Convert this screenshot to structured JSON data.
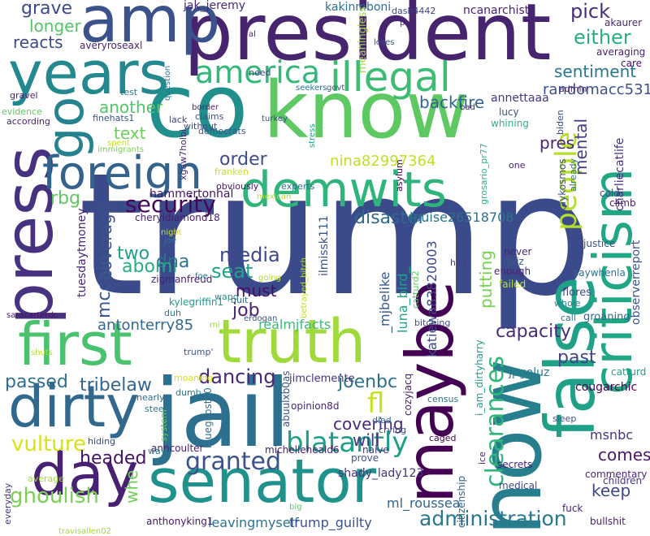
{
  "colors": {
    "background": "#ffffff",
    "palette": [
      "#440154",
      "#46327e",
      "#365c8d",
      "#277f8e",
      "#1fa187",
      "#4ac16d",
      "#a0da39",
      "#fde725"
    ]
  },
  "words": [
    {
      "text": "trump",
      "color": "#3b4a8a"
    },
    {
      "text": "president",
      "color": "#46256e"
    },
    {
      "text": "co",
      "color": "#21908d"
    },
    {
      "text": "know",
      "color": "#5ec962"
    },
    {
      "text": "press",
      "color": "#46327e"
    },
    {
      "text": "jail",
      "color": "#2c6f8e"
    },
    {
      "text": "now",
      "color": "#277f8e"
    },
    {
      "text": "first",
      "color": "#4ac16d"
    },
    {
      "text": "truth",
      "color": "#9fda3a"
    },
    {
      "text": "maybe",
      "color": "#440154"
    },
    {
      "text": "false",
      "color": "#1fa187"
    },
    {
      "text": "criticism",
      "color": "#22a785"
    },
    {
      "text": "senator",
      "color": "#20928c"
    },
    {
      "text": "demwits",
      "color": "#2fb47c"
    },
    {
      "text": "amp",
      "color": "#3b528b"
    },
    {
      "text": "years",
      "color": "#23898e"
    },
    {
      "text": "day",
      "color": "#482173"
    },
    {
      "text": "dirty",
      "color": "#31688e"
    },
    {
      "text": "foreign",
      "color": "#33628d"
    },
    {
      "text": "go",
      "color": "#26828e"
    },
    {
      "text": "illegal",
      "color": "#3fbc73"
    },
    {
      "text": "america",
      "color": "#35b779"
    },
    {
      "text": "people",
      "color": "#b5de2b"
    },
    {
      "text": "clearances",
      "color": "#31b57b"
    },
    {
      "text": "administration",
      "color": "#2a788e"
    },
    {
      "text": "security",
      "color": "#46075a"
    },
    {
      "text": "mental",
      "color": "#433e85"
    },
    {
      "text": "nina82997364",
      "color": "#bddf26"
    },
    {
      "text": "media",
      "color": "#3e4989"
    },
    {
      "text": "granted",
      "color": "#3b528b"
    },
    {
      "text": "blatantly",
      "color": "#1f9e89"
    },
    {
      "text": "dancing",
      "color": "#482878"
    },
    {
      "text": "fl",
      "color": "#c8e020"
    },
    {
      "text": "vulture",
      "color": "#d8e219"
    },
    {
      "text": "ghoulish",
      "color": "#7ad151"
    },
    {
      "text": "pick",
      "color": "#472d7b"
    },
    {
      "text": "either",
      "color": "#29af7f"
    },
    {
      "text": "sentiment",
      "color": "#2a768e"
    },
    {
      "text": "randomacc531",
      "color": "#3b528b"
    },
    {
      "text": "backfire",
      "color": "#33638d"
    },
    {
      "text": "pres",
      "color": "#482475"
    },
    {
      "text": "another",
      "color": "#52c569"
    },
    {
      "text": "text",
      "color": "#6ccd5a"
    },
    {
      "text": "order",
      "color": "#3e4c8a"
    },
    {
      "text": "rbg",
      "color": "#5ec962"
    },
    {
      "text": "disaster",
      "color": "#31688e"
    },
    {
      "text": "louise26518708",
      "color": "#2c728e"
    },
    {
      "text": "coverage",
      "color": "#3b528b"
    },
    {
      "text": "two",
      "color": "#1f9e89"
    },
    {
      "text": "dna",
      "color": "#2c728e"
    },
    {
      "text": "seat",
      "color": "#20a486"
    },
    {
      "text": "must",
      "color": "#471063"
    },
    {
      "text": "abomi",
      "color": "#27ad81"
    },
    {
      "text": "mccain",
      "color": "#38588c"
    },
    {
      "text": "job",
      "color": "#482071"
    },
    {
      "text": "capacity",
      "color": "#472c7a"
    },
    {
      "text": "past",
      "color": "#414487"
    },
    {
      "text": "joenbc",
      "color": "#2d708e"
    },
    {
      "text": "covering",
      "color": "#472a7a"
    },
    {
      "text": "will",
      "color": "#46327e"
    },
    {
      "text": "comes",
      "color": "#481769"
    },
    {
      "text": "keep",
      "color": "#3e4989"
    },
    {
      "text": "msnbc",
      "color": "#46327e"
    },
    {
      "text": "headed",
      "color": "#471365"
    },
    {
      "text": "passed",
      "color": "#2e6f8e"
    },
    {
      "text": "tribelaw",
      "color": "#32658e"
    },
    {
      "text": "antonterry85",
      "color": "#31688e"
    },
    {
      "text": "realmjfacts",
      "color": "#3aba76"
    },
    {
      "text": "katiewa83820003",
      "color": "#3e4a89"
    },
    {
      "text": "_mjbelike",
      "color": "#37598c"
    },
    {
      "text": "luna_bird_",
      "color": "#1fa287"
    },
    {
      "text": "putting",
      "color": "#75d054"
    },
    {
      "text": "leavingmyself",
      "color": "#2c738e"
    },
    {
      "text": "trump_guilty",
      "color": "#3b528b"
    },
    {
      "text": "ml_roussea",
      "color": "#32648e"
    },
    {
      "text": "shady_lady123",
      "color": "#46337f"
    },
    {
      "text": "charliecatlife",
      "color": "#46307e"
    },
    {
      "text": "observerreport",
      "color": "#3b528b"
    },
    {
      "text": "grave",
      "color": "#3e4989"
    },
    {
      "text": "longer",
      "color": "#52c569"
    },
    {
      "text": "reacts",
      "color": "#3e4989"
    },
    {
      "text": "jak_jeremy",
      "color": "#482878"
    },
    {
      "text": "kakinmboni",
      "color": "#2e6e8e"
    },
    {
      "text": "ncanarchist",
      "color": "#481f70"
    },
    {
      "text": "meaningless",
      "color": "#a2da37"
    },
    {
      "text": "averyroseaxl",
      "color": "#482475"
    },
    {
      "text": "dash4442",
      "color": "#414487"
    },
    {
      "text": "annettaaa",
      "color": "#453882"
    },
    {
      "text": "hammertonhal",
      "color": "#471365"
    },
    {
      "text": "cheryldiamond18",
      "color": "#481c6e"
    },
    {
      "text": "tuesdaytmoney",
      "color": "#482677"
    },
    {
      "text": "ilmissk111",
      "color": "#3b528b"
    },
    {
      "text": "zigmanfreud",
      "color": "#482071"
    },
    {
      "text": "kylegriffin1",
      "color": "#1f9a8a"
    },
    {
      "text": "opinion8d",
      "color": "#482878"
    },
    {
      "text": "jimclemente",
      "color": "#46327e"
    },
    {
      "text": "cozyjacq",
      "color": "#482071"
    },
    {
      "text": "jpgoluz",
      "color": "#2a788e"
    },
    {
      "text": "cougarchic",
      "color": "#440154"
    },
    {
      "text": "blueghost40",
      "color": "#2d708e"
    },
    {
      "text": "abuulxb0as",
      "color": "#3b528b"
    },
    {
      "text": "michelleheald6",
      "color": "#482071"
    },
    {
      "text": "anncoulter",
      "color": "#482071"
    },
    {
      "text": "anthonyking1",
      "color": "#471365"
    },
    {
      "text": "i_am_dirtyharry",
      "color": "#1f9e89"
    },
    {
      "text": "citizenship",
      "color": "#32648e"
    },
    {
      "text": "commentary",
      "color": "#482878"
    },
    {
      "text": "children",
      "color": "#463480"
    },
    {
      "text": "bullshit",
      "color": "#481a6c"
    },
    {
      "text": "secrets",
      "color": "#482475"
    },
    {
      "text": "medical",
      "color": "#3e4989"
    },
    {
      "text": "fuck",
      "color": "#482071"
    },
    {
      "text": "travisallen02",
      "color": "#a0da39"
    },
    {
      "text": "everyday",
      "color": "#46327e"
    },
    {
      "text": "whe",
      "color": "#6ece58"
    },
    {
      "text": "saracarterdc",
      "color": "#471365"
    },
    {
      "text": "flores",
      "color": "#3e4989"
    },
    {
      "text": "groaning",
      "color": "#31688e"
    },
    {
      "text": "saywhenla",
      "color": "#2c728e"
    },
    {
      "text": "kaykosmos",
      "color": "#3b528b"
    },
    {
      "text": "justice",
      "color": "#3b528b"
    },
    {
      "text": "climb",
      "color": "#481769"
    },
    {
      "text": "cold",
      "color": "#3f4788"
    },
    {
      "text": "whole",
      "color": "#26828e"
    },
    {
      "text": "call",
      "color": "#2a788e"
    },
    {
      "text": "catturd",
      "color": "#1f9e89"
    },
    {
      "text": "akaurer",
      "color": "#482878"
    },
    {
      "text": "averaging",
      "color": "#481f70"
    },
    {
      "text": "care",
      "color": "#471063"
    },
    {
      "text": "admin",
      "color": "#481a6c"
    },
    {
      "text": "lucy",
      "color": "#3b528b"
    },
    {
      "text": "whining",
      "color": "#2fb47c"
    },
    {
      "text": "biden",
      "color": "#3e4989"
    },
    {
      "text": "already",
      "color": "#2c728e"
    },
    {
      "text": "grosario_pr77",
      "color": "#2fb47c"
    },
    {
      "text": "one",
      "color": "#482071"
    },
    {
      "text": "asylum",
      "color": "#440154"
    },
    {
      "text": "never",
      "color": "#482878"
    },
    {
      "text": "quiz",
      "color": "#38588c"
    },
    {
      "text": "enough",
      "color": "#482677"
    },
    {
      "text": "failed",
      "color": "#b5de2b"
    },
    {
      "text": "hire",
      "color": "#433e85"
    },
    {
      "text": "catturd2",
      "color": "#5ec962"
    },
    {
      "text": "bitching",
      "color": "#3e4c8a"
    },
    {
      "text": "betrayed_bitch",
      "color": "#bddf26"
    },
    {
      "text": "erdogan",
      "color": "#3b528b"
    },
    {
      "text": "wapo",
      "color": "#21908d"
    },
    {
      "text": "quit",
      "color": "#2c728e"
    },
    {
      "text": "going",
      "color": "#b5de2b"
    },
    {
      "text": "mi",
      "color": "#a0da39"
    },
    {
      "text": "duh",
      "color": "#2a788e"
    },
    {
      "text": "trump'",
      "color": "#3b528b"
    },
    {
      "text": "moaning",
      "color": "#d8e219"
    },
    {
      "text": "shuts",
      "color": "#b5de2b"
    },
    {
      "text": "census",
      "color": "#2c728e"
    },
    {
      "text": "caged",
      "color": "#440154"
    },
    {
      "text": "died",
      "color": "#2e6f8e"
    },
    {
      "text": "crying",
      "color": "#3e4989"
    },
    {
      "text": "nearly",
      "color": "#31688e"
    },
    {
      "text": "steep",
      "color": "#2a788e"
    },
    {
      "text": "dumb",
      "color": "#2a788e"
    },
    {
      "text": "prove",
      "color": "#3b528b"
    },
    {
      "text": "naive",
      "color": "#46327e"
    },
    {
      "text": "ice",
      "color": "#481f70"
    },
    {
      "text": "sleep",
      "color": "#3b528b"
    },
    {
      "text": "way",
      "color": "#2a788e"
    },
    {
      "text": "hiding",
      "color": "#3e4989"
    },
    {
      "text": "system",
      "color": "#5ec962"
    },
    {
      "text": "average",
      "color": "#a0da39"
    },
    {
      "text": "big",
      "color": "#5ec962"
    },
    {
      "text": "joe",
      "color": "#2a788e"
    },
    {
      "text": "night",
      "color": "#c8e020"
    },
    {
      "text": "foe",
      "color": "#2c728e"
    },
    {
      "text": "experts",
      "color": "#2e6f8e"
    },
    {
      "text": "mexican",
      "color": "#b5de2b"
    },
    {
      "text": "obviously",
      "color": "#471365"
    },
    {
      "text": "franken",
      "color": "#c8e020"
    },
    {
      "text": "democrats",
      "color": "#3b528b"
    },
    {
      "text": "without",
      "color": "#3e4989"
    },
    {
      "text": "claims",
      "color": "#3b528b"
    },
    {
      "text": "immigrants",
      "color": "#7ad151"
    },
    {
      "text": "spent",
      "color": "#c8e020"
    },
    {
      "text": "xgaw7holbi",
      "color": "#482878"
    },
    {
      "text": "border",
      "color": "#481f70"
    },
    {
      "text": "turkey",
      "color": "#3e4989"
    },
    {
      "text": "stress",
      "color": "#1f9e89"
    },
    {
      "text": "govt",
      "color": "#3b528b"
    },
    {
      "text": "seekers",
      "color": "#2c728e"
    },
    {
      "text": "bad",
      "color": "#482071"
    },
    {
      "text": "lack",
      "color": "#3e4989"
    },
    {
      "text": "finehats1",
      "color": "#3b528b"
    },
    {
      "text": "test",
      "color": "#2a788e"
    },
    {
      "text": "question",
      "color": "#2c728e"
    },
    {
      "text": "need",
      "color": "#433e85"
    },
    {
      "text": "al",
      "color": "#482071"
    },
    {
      "text": "loses",
      "color": "#3b528b"
    },
    {
      "text": "pa",
      "color": "#481f70"
    },
    {
      "text": "gravel",
      "color": "#481f70"
    },
    {
      "text": "evidence",
      "color": "#5ec962"
    },
    {
      "text": "according",
      "color": "#482071"
    }
  ]
}
